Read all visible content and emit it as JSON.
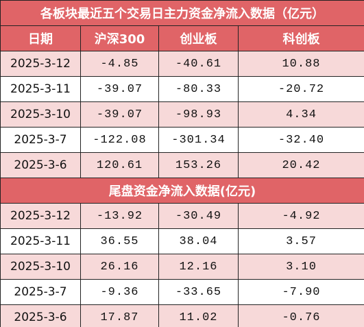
{
  "table": {
    "title": "各板块最近五个交易日主力资金净流入数据（亿元）",
    "columns": [
      "日期",
      "沪深300",
      "创业板",
      "科创板"
    ],
    "rows": [
      [
        "2025-3-12",
        "-4.85",
        "-40.61",
        "10.88"
      ],
      [
        "2025-3-11",
        "-39.07",
        "-80.33",
        "-20.72"
      ],
      [
        "2025-3-10",
        "-39.07",
        "-98.93",
        "4.34"
      ],
      [
        "2025-3-7",
        "-122.08",
        "-301.34",
        "-32.40"
      ],
      [
        "2025-3-6",
        "120.61",
        "153.26",
        "20.42"
      ]
    ],
    "section_title": "尾盘资金净流入数据(亿元)",
    "section_rows": [
      [
        "2025-3-12",
        "-13.92",
        "-30.49",
        "-4.92"
      ],
      [
        "2025-3-11",
        "36.55",
        "38.04",
        "3.57"
      ],
      [
        "2025-3-10",
        "26.16",
        "12.16",
        "3.10"
      ],
      [
        "2025-3-7",
        "-9.36",
        "-33.65",
        "-7.90"
      ],
      [
        "2025-3-6",
        "17.87",
        "11.02",
        "-0.76"
      ]
    ]
  }
}
